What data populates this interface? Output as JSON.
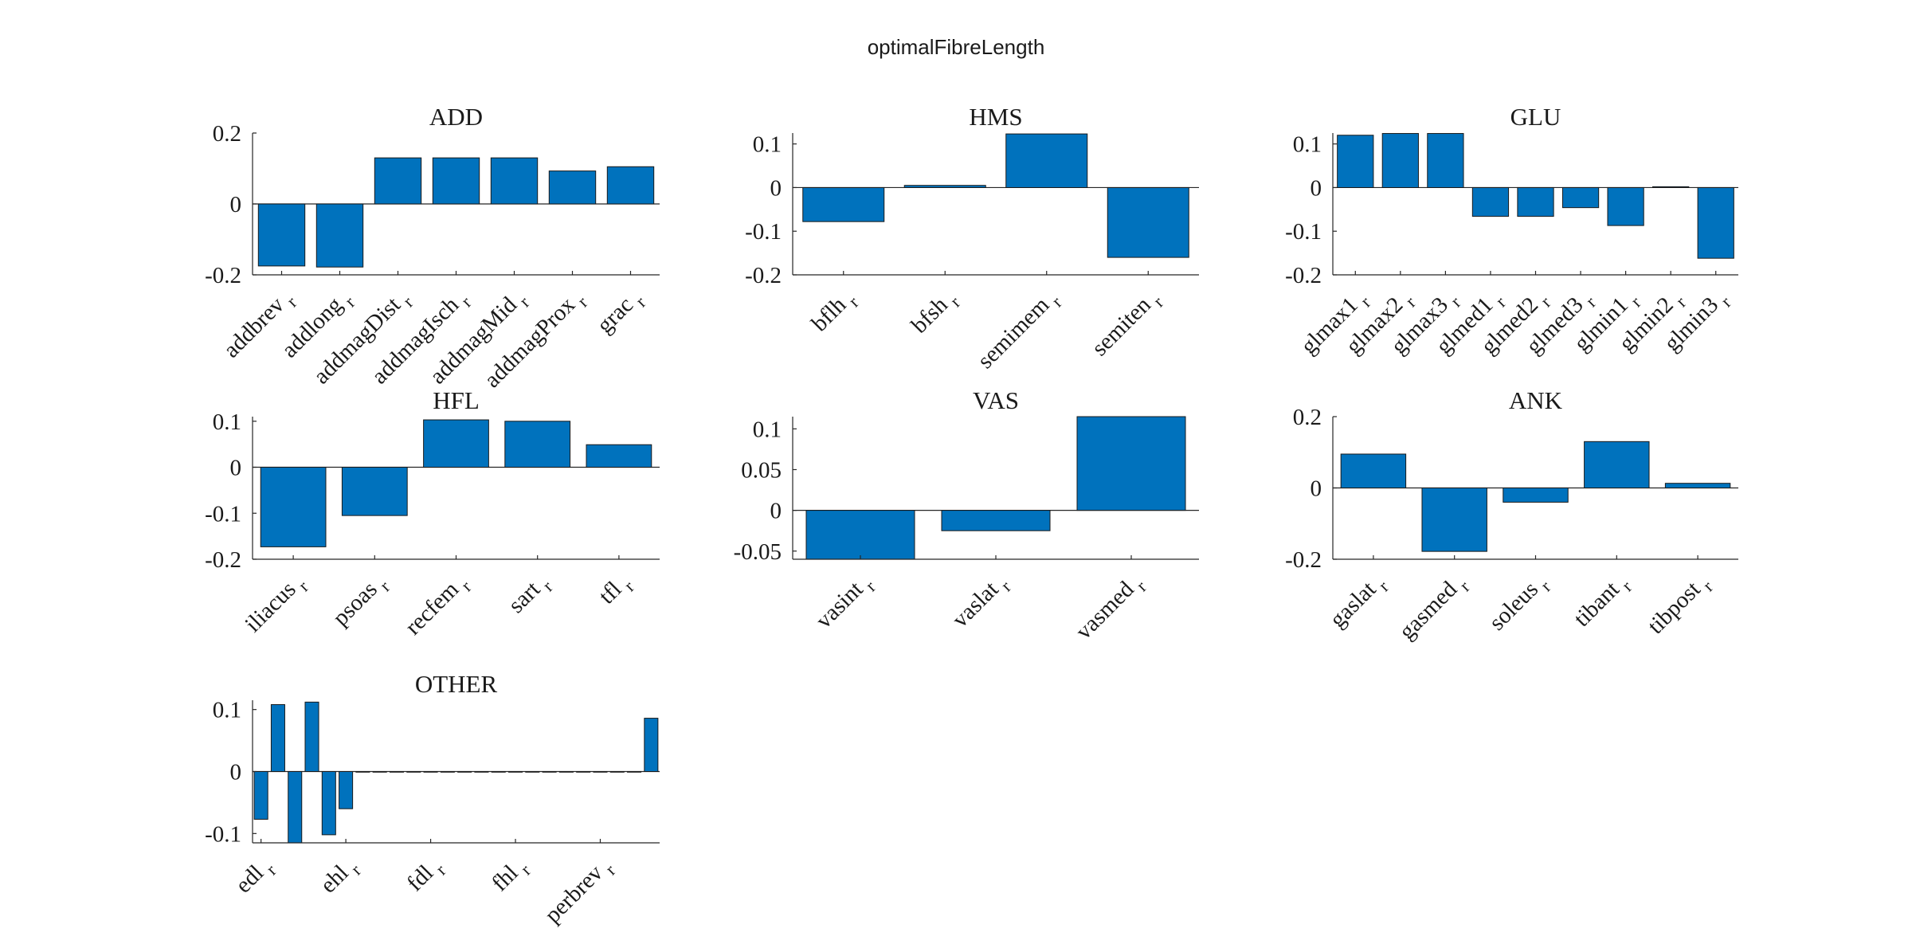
{
  "figure_title": "optimalFibreLength",
  "colors": {
    "bar": "#0072BD",
    "bar_edge": "#1a1a1a",
    "axis": "#262626",
    "text": "#1a1a1a"
  },
  "chart_data": [
    {
      "type": "bar",
      "title": "ADD",
      "categories": [
        "addbrev",
        "addlong",
        "addmagDist",
        "addmagIsch",
        "addmagMid",
        "addmagProx",
        "grac"
      ],
      "subscript": "r",
      "values": [
        -0.175,
        -0.178,
        0.13,
        0.13,
        0.13,
        0.093,
        0.105
      ],
      "ylim": [
        -0.2,
        0.2
      ],
      "yticks": [
        -0.2,
        0,
        0.2
      ],
      "ytick_labels": [
        "-0.2",
        "0",
        "0.2"
      ],
      "grid": false
    },
    {
      "type": "bar",
      "title": "HMS",
      "categories": [
        "bflh",
        "bfsh",
        "semimem",
        "semiten"
      ],
      "subscript": "r",
      "values": [
        -0.078,
        0.005,
        0.123,
        -0.16
      ],
      "ylim": [
        -0.2,
        0.125
      ],
      "yticks": [
        -0.2,
        -0.1,
        0,
        0.1
      ],
      "ytick_labels": [
        "-0.2",
        "-0.1",
        "0",
        "0.1"
      ],
      "grid": false
    },
    {
      "type": "bar",
      "title": "GLU",
      "categories": [
        "glmax1",
        "glmax2",
        "glmax3",
        "glmed1",
        "glmed2",
        "glmed3",
        "glmin1",
        "glmin2",
        "glmin3"
      ],
      "subscript": "r",
      "values": [
        0.12,
        0.124,
        0.124,
        -0.066,
        -0.066,
        -0.046,
        -0.087,
        0.002,
        -0.162
      ],
      "ylim": [
        -0.2,
        0.125
      ],
      "yticks": [
        -0.2,
        -0.1,
        0,
        0.1
      ],
      "ytick_labels": [
        "-0.2",
        "-0.1",
        "0",
        "0.1"
      ],
      "grid": false
    },
    {
      "type": "bar",
      "title": "HFL",
      "categories": [
        "iliacus",
        "psoas",
        "recfem",
        "sart",
        "tfl"
      ],
      "subscript": "r",
      "values": [
        -0.173,
        -0.105,
        0.103,
        0.1,
        0.049
      ],
      "ylim": [
        -0.2,
        0.11
      ],
      "yticks": [
        -0.2,
        -0.1,
        0,
        0.1
      ],
      "ytick_labels": [
        "-0.2",
        "-0.1",
        "0",
        "0.1"
      ],
      "grid": false
    },
    {
      "type": "bar",
      "title": "VAS",
      "categories": [
        "vasint",
        "vaslat",
        "vasmed"
      ],
      "subscript": "r",
      "values": [
        -0.06,
        -0.025,
        0.115
      ],
      "ylim": [
        -0.06,
        0.115
      ],
      "yticks": [
        -0.05,
        0,
        0.05,
        0.1
      ],
      "ytick_labels": [
        "-0.05",
        "0",
        "0.05",
        "0.1"
      ],
      "grid": false
    },
    {
      "type": "bar",
      "title": "ANK",
      "categories": [
        "gaslat",
        "gasmed",
        "soleus",
        "tibant",
        "tibpost"
      ],
      "subscript": "r",
      "values": [
        0.095,
        -0.178,
        -0.04,
        0.13,
        0.013
      ],
      "ylim": [
        -0.2,
        0.2
      ],
      "yticks": [
        -0.2,
        0,
        0.2
      ],
      "ytick_labels": [
        "-0.2",
        "0",
        "0.2"
      ],
      "grid": false
    },
    {
      "type": "bar",
      "title": "OTHER",
      "categories": [
        "edl",
        "ehl",
        "fdl",
        "fhl",
        "perbrev"
      ],
      "subscript": "r",
      "tick_positions": [
        1,
        6,
        11,
        16,
        21
      ],
      "x": [
        1,
        2,
        3,
        4,
        5,
        6,
        7,
        8,
        9,
        10,
        11,
        12,
        13,
        14,
        15,
        16,
        17,
        18,
        19,
        20,
        21,
        22,
        23,
        24
      ],
      "values": [
        -0.077,
        0.108,
        -0.115,
        0.112,
        -0.102,
        -0.06,
        0,
        0,
        0,
        0,
        0,
        0,
        0,
        0,
        0,
        0,
        0,
        0,
        0,
        0,
        0,
        0,
        0,
        0.086
      ],
      "xlim": [
        0.5,
        24.5
      ],
      "ylim": [
        -0.115,
        0.115
      ],
      "yticks": [
        -0.1,
        0,
        0.1
      ],
      "ytick_labels": [
        "-0.1",
        "0",
        "0.1"
      ],
      "grid": false
    }
  ]
}
